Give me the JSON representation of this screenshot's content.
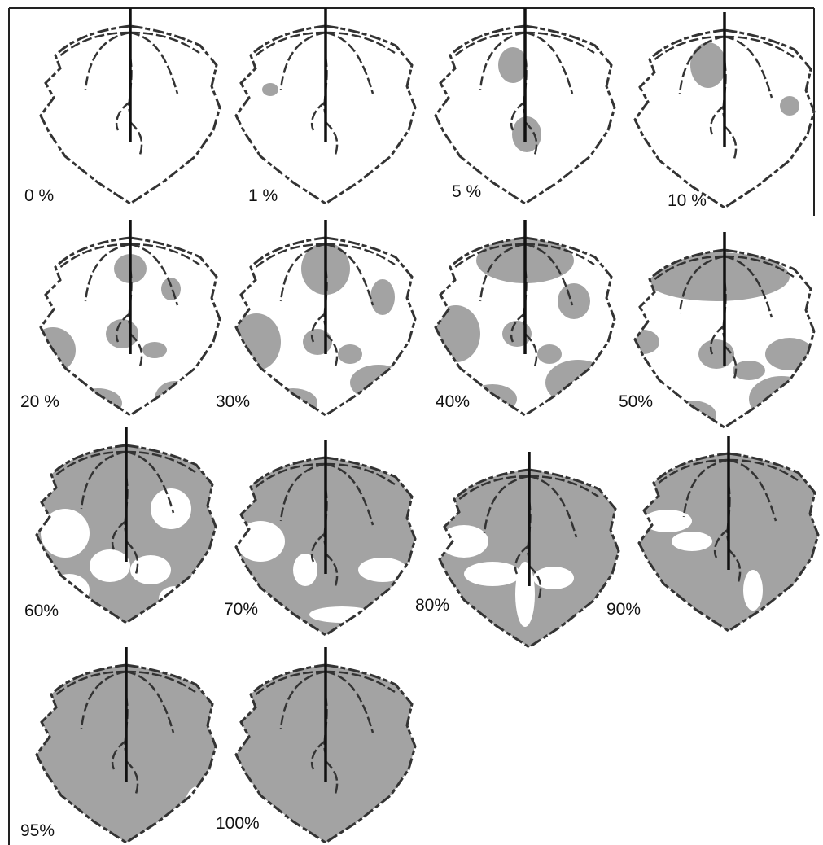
{
  "leaves": [
    {
      "label": "0 %"
    },
    {
      "label": "1 %"
    },
    {
      "label": "5 %"
    },
    {
      "label": "10 %"
    },
    {
      "label": "20 %"
    },
    {
      "label": "30%"
    },
    {
      "label": "40%"
    },
    {
      "label": "50%"
    },
    {
      "label": "60%"
    },
    {
      "label": "70%"
    },
    {
      "label": "80%"
    },
    {
      "label": "90%"
    },
    {
      "label": "95%"
    },
    {
      "label": "100%"
    }
  ]
}
